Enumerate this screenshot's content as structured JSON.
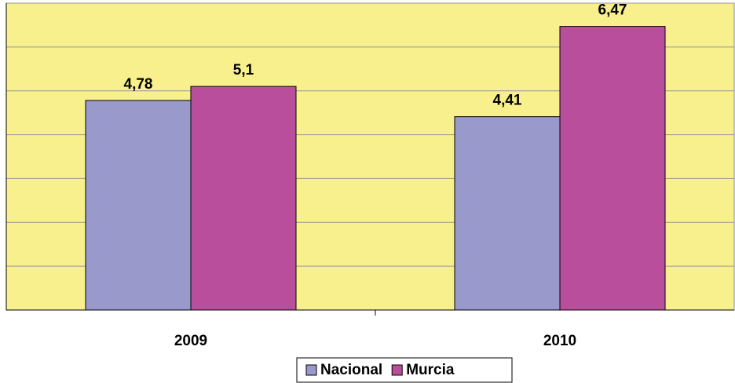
{
  "chart_data": {
    "type": "bar",
    "categories": [
      "2009",
      "2010"
    ],
    "series": [
      {
        "name": "Nacional",
        "color": "#9999cc",
        "values": [
          4.78,
          4.41
        ],
        "value_labels": [
          "4,78",
          "4,41"
        ]
      },
      {
        "name": "Murcia",
        "color": "#b94f9c",
        "values": [
          5.1,
          6.47
        ],
        "value_labels": [
          "5,1",
          "6,47"
        ]
      }
    ],
    "ylim": [
      0,
      7
    ],
    "yticks": [
      0,
      1,
      2,
      3,
      4,
      5,
      6,
      7
    ],
    "grid": true,
    "legend": "bottom"
  }
}
